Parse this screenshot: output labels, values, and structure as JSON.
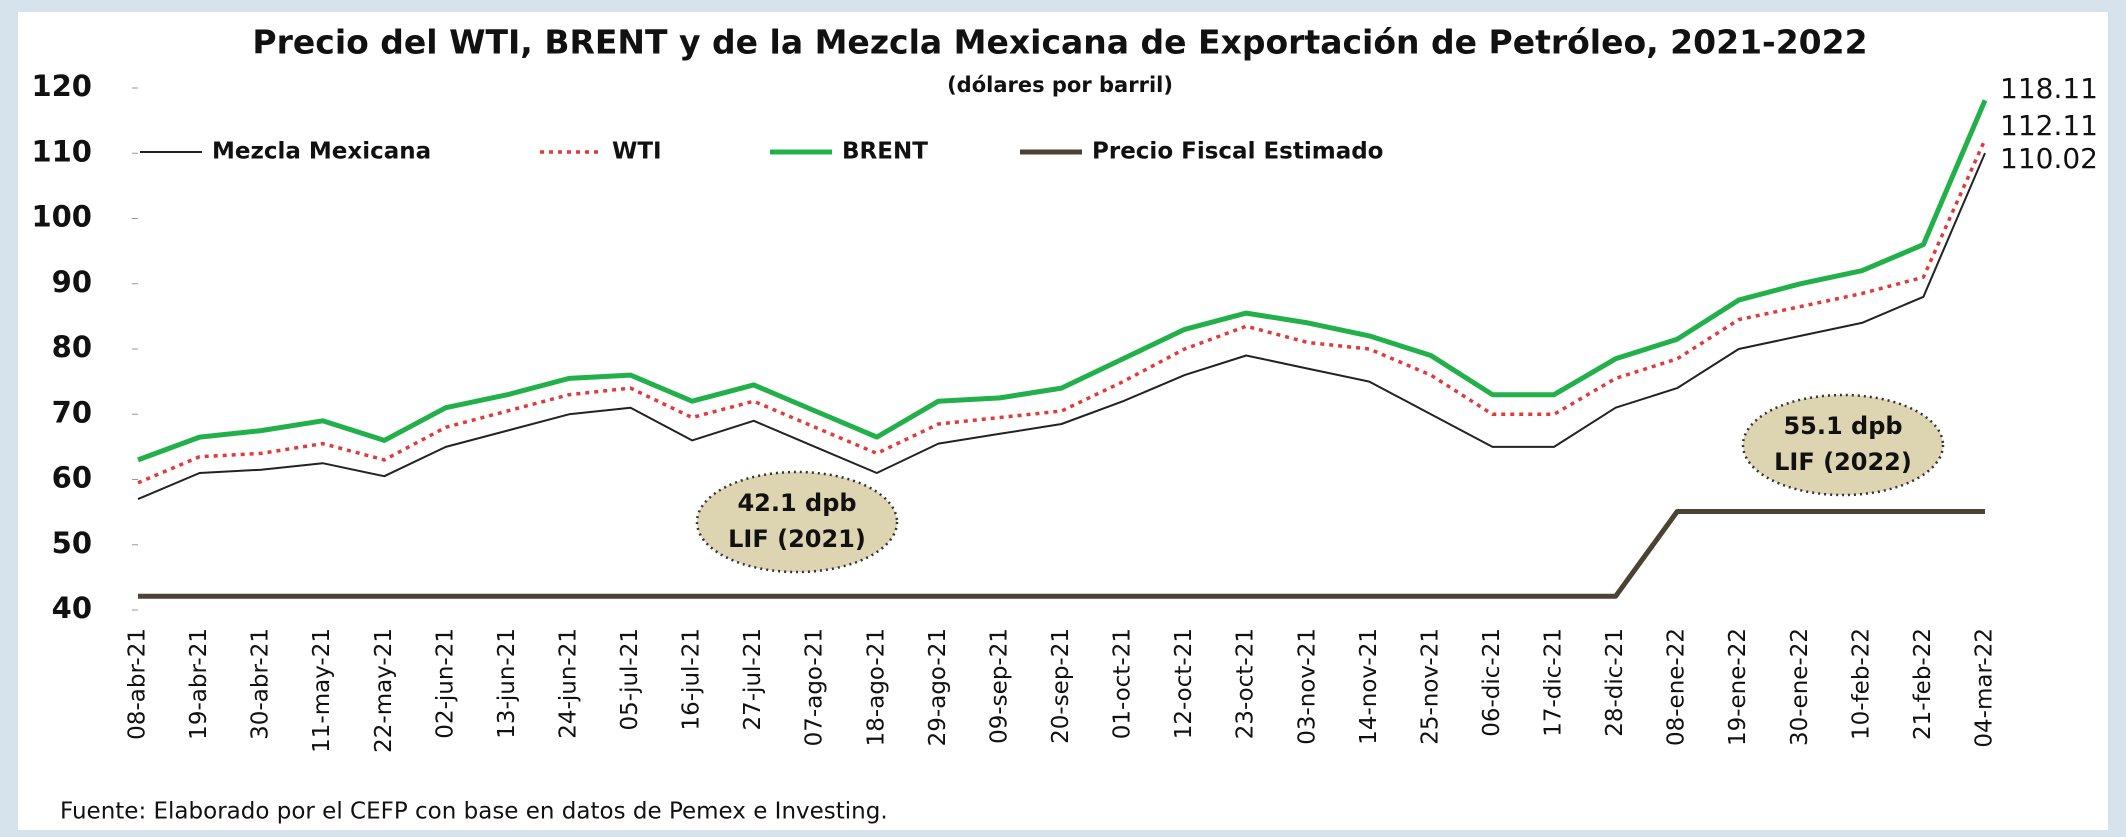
{
  "chart_data": {
    "type": "line",
    "title": "Precio del WTI, BRENT y de la Mezcla Mexicana de Exportación de Petróleo, 2021-2022",
    "subtitle": "(dólares por barril)",
    "source": "Fuente: Elaborado por el CEFP con base en datos de Pemex e Investing.",
    "categories": [
      "08-abr-21",
      "19-abr-21",
      "30-abr-21",
      "11-may-21",
      "22-may-21",
      "02-jun-21",
      "13-jun-21",
      "24-jun-21",
      "05-jul-21",
      "16-jul-21",
      "27-jul-21",
      "07-ago-21",
      "18-ago-21",
      "29-ago-21",
      "09-sep-21",
      "20-sep-21",
      "01-oct-21",
      "12-oct-21",
      "23-oct-21",
      "03-nov-21",
      "14-nov-21",
      "25-nov-21",
      "06-dic-21",
      "17-dic-21",
      "28-dic-21",
      "08-ene-22",
      "19-ene-22",
      "30-ene-22",
      "10-feb-22",
      "21-feb-22",
      "04-mar-22"
    ],
    "series": [
      {
        "name": "Mezcla Mexicana",
        "color": "#222222",
        "style": "thin",
        "values": [
          57,
          61,
          61.5,
          62.5,
          60.5,
          65,
          67.5,
          70,
          71,
          66,
          69,
          65,
          61,
          65.5,
          67,
          68.5,
          72,
          76,
          79,
          77,
          75,
          70,
          65,
          65,
          71,
          74,
          80,
          82,
          84,
          88,
          110.02
        ]
      },
      {
        "name": "WTI",
        "color": "#e03a3a",
        "style": "dotted",
        "values": [
          59.5,
          63.5,
          64,
          65.5,
          63,
          68,
          70.5,
          73,
          74,
          69.5,
          72,
          68,
          64,
          68.5,
          69.5,
          70.5,
          75,
          80,
          83.5,
          81,
          80,
          76,
          70,
          70,
          75.5,
          78.5,
          84.5,
          86.5,
          88.5,
          91,
          112.11
        ]
      },
      {
        "name": "BRENT",
        "color": "#22b04a",
        "style": "thick",
        "values": [
          63,
          66.5,
          67.5,
          69,
          66,
          71,
          73,
          75.5,
          76,
          72,
          74.5,
          70.5,
          66.5,
          72,
          72.5,
          74,
          78.5,
          83,
          85.5,
          84,
          82,
          79,
          73,
          73,
          78.5,
          81.5,
          87.5,
          90,
          92,
          96,
          118.11
        ]
      },
      {
        "name": "Precio Fiscal Estimado",
        "color": "#4a4232",
        "style": "thick",
        "values": [
          42.1,
          42.1,
          42.1,
          42.1,
          42.1,
          42.1,
          42.1,
          42.1,
          42.1,
          42.1,
          42.1,
          42.1,
          42.1,
          42.1,
          42.1,
          42.1,
          42.1,
          42.1,
          42.1,
          42.1,
          42.1,
          42.1,
          42.1,
          42.1,
          42.1,
          55.1,
          55.1,
          55.1,
          55.1,
          55.1,
          55.1
        ]
      }
    ],
    "annotations": [
      [
        "42.1 dpb",
        "LIF (2021)"
      ],
      [
        "55.1 dpb",
        "LIF (2022)"
      ]
    ],
    "ylim": [
      40,
      120
    ],
    "yticks": [
      40,
      50,
      60,
      70,
      80,
      90,
      100,
      110,
      120
    ],
    "grid": false,
    "legend": "upper left"
  }
}
